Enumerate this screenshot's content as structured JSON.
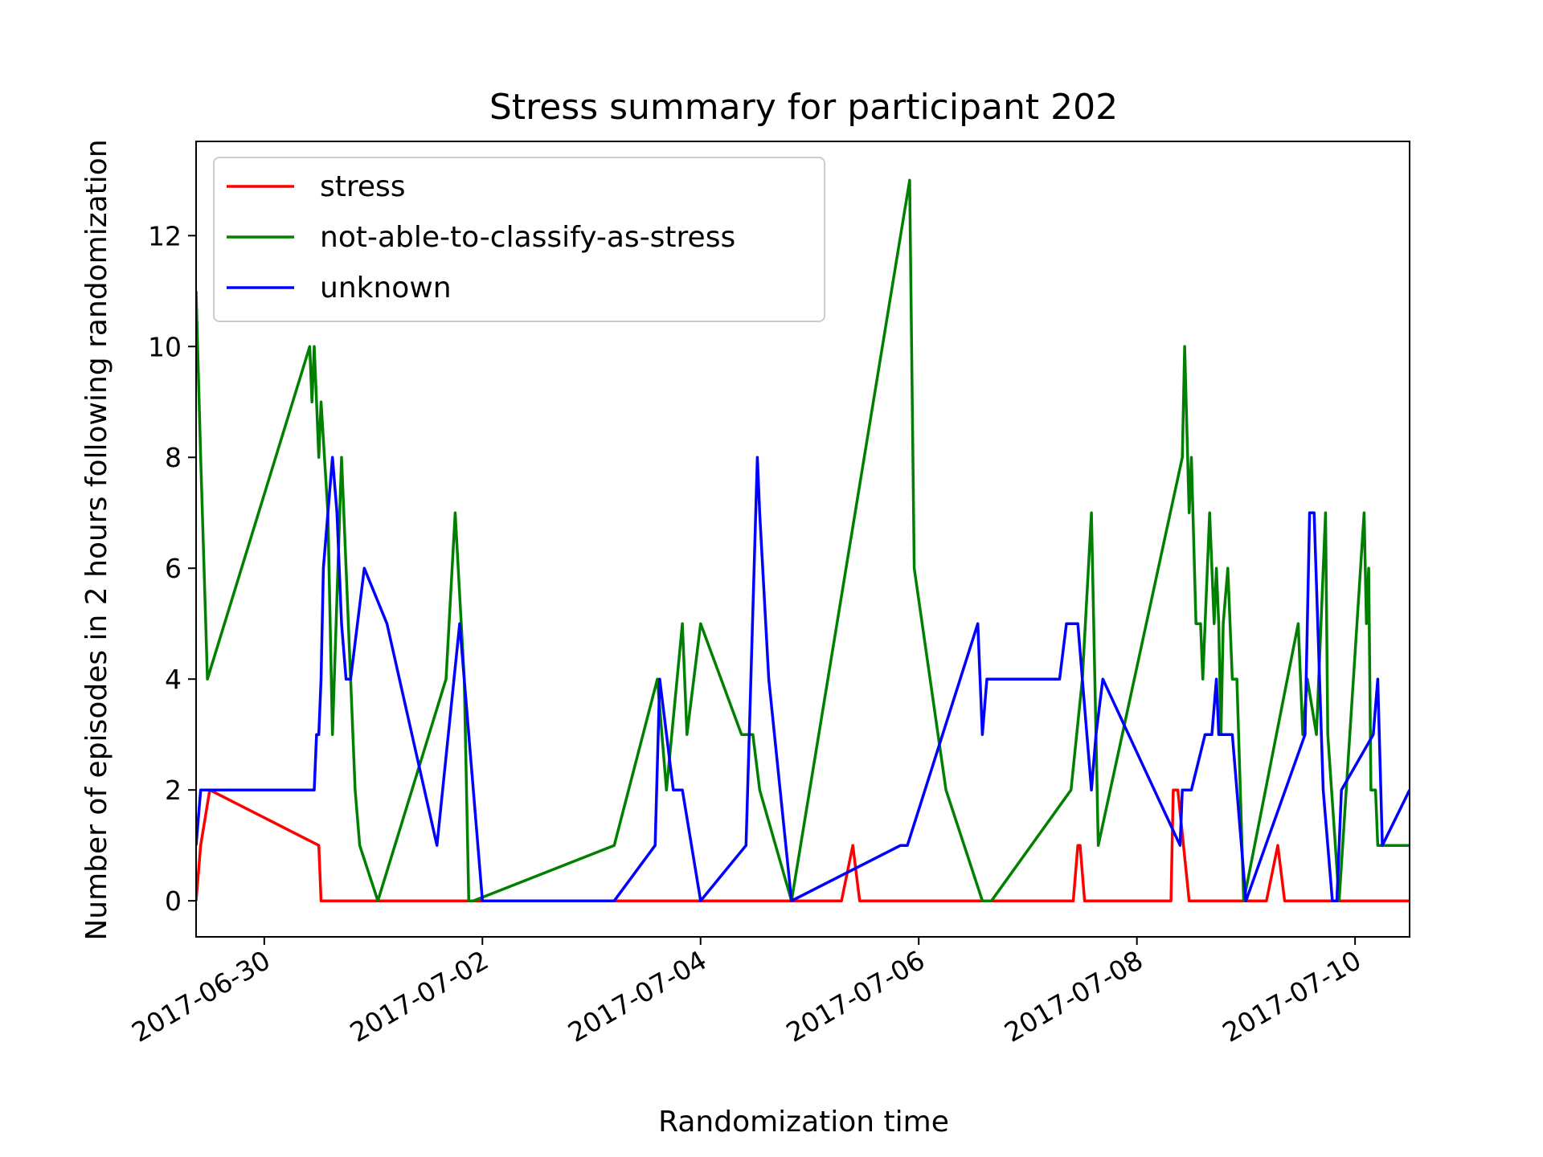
{
  "chart_data": {
    "type": "line",
    "title": "Stress summary for participant 202",
    "xlabel": "Randomization time",
    "ylabel": "Number of episodes in 2 hours following randomization",
    "xlim": [
      "2017-06-29T09:00",
      "2017-07-10T12:00"
    ],
    "ylim": [
      -0.65,
      13.7
    ],
    "x_ticks": [
      "2017-06-30",
      "2017-07-02",
      "2017-07-04",
      "2017-07-06",
      "2017-07-08",
      "2017-07-10"
    ],
    "y_ticks": [
      0,
      2,
      4,
      6,
      8,
      10,
      12
    ],
    "grid": false,
    "legend_position": "upper-left",
    "series": [
      {
        "name": "stress",
        "color": "#ff0000",
        "points": [
          [
            "2017-06-29T09:00",
            0
          ],
          [
            "2017-06-29T10:00",
            1
          ],
          [
            "2017-06-29T12:00",
            2
          ],
          [
            "2017-06-30T12:00",
            1
          ],
          [
            "2017-06-30T12:30",
            0
          ],
          [
            "2017-07-05T07:00",
            0
          ],
          [
            "2017-07-05T09:30",
            1
          ],
          [
            "2017-07-05T11:00",
            0
          ],
          [
            "2017-07-07T10:00",
            0
          ],
          [
            "2017-07-07T11:00",
            1
          ],
          [
            "2017-07-07T11:30",
            1
          ],
          [
            "2017-07-07T12:30",
            0
          ],
          [
            "2017-07-08T07:30",
            0
          ],
          [
            "2017-07-08T08:00",
            2
          ],
          [
            "2017-07-08T09:00",
            2
          ],
          [
            "2017-07-08T11:30",
            0
          ],
          [
            "2017-07-09T04:30",
            0
          ],
          [
            "2017-07-09T07:00",
            1
          ],
          [
            "2017-07-09T08:30",
            0
          ],
          [
            "2017-07-10T12:00",
            0
          ]
        ]
      },
      {
        "name": "not-able-to-classify-as-stress",
        "color": "#008000",
        "points": [
          [
            "2017-06-29T09:00",
            11
          ],
          [
            "2017-06-29T10:00",
            8
          ],
          [
            "2017-06-29T11:30",
            4
          ],
          [
            "2017-06-30T10:00",
            10
          ],
          [
            "2017-06-30T10:30",
            9
          ],
          [
            "2017-06-30T11:00",
            10
          ],
          [
            "2017-06-30T11:30",
            9
          ],
          [
            "2017-06-30T12:00",
            8
          ],
          [
            "2017-06-30T12:30",
            9
          ],
          [
            "2017-06-30T14:00",
            7
          ],
          [
            "2017-06-30T15:00",
            3
          ],
          [
            "2017-06-30T17:00",
            8
          ],
          [
            "2017-06-30T19:00",
            4
          ],
          [
            "2017-06-30T20:00",
            2
          ],
          [
            "2017-06-30T21:00",
            1
          ],
          [
            "2017-07-01T01:00",
            0
          ],
          [
            "2017-07-01T16:00",
            4
          ],
          [
            "2017-07-01T18:00",
            7
          ],
          [
            "2017-07-01T20:00",
            4
          ],
          [
            "2017-07-01T21:00",
            0
          ],
          [
            "2017-07-01T22:00",
            0
          ],
          [
            "2017-07-03T05:00",
            1
          ],
          [
            "2017-07-03T14:30",
            4
          ],
          [
            "2017-07-03T16:30",
            2
          ],
          [
            "2017-07-03T20:00",
            5
          ],
          [
            "2017-07-03T21:00",
            3
          ],
          [
            "2017-07-04T00:00",
            5
          ],
          [
            "2017-07-04T09:00",
            3
          ],
          [
            "2017-07-04T11:30",
            3
          ],
          [
            "2017-07-04T13:00",
            2
          ],
          [
            "2017-07-04T20:00",
            0
          ],
          [
            "2017-07-05T22:00",
            13
          ],
          [
            "2017-07-05T23:00",
            6
          ],
          [
            "2017-07-06T06:00",
            2
          ],
          [
            "2017-07-06T14:00",
            0
          ],
          [
            "2017-07-06T16:00",
            0
          ],
          [
            "2017-07-07T09:30",
            2
          ],
          [
            "2017-07-07T12:00",
            4
          ],
          [
            "2017-07-07T14:00",
            7
          ],
          [
            "2017-07-07T15:30",
            1
          ],
          [
            "2017-07-08T10:00",
            8
          ],
          [
            "2017-07-08T10:30",
            10
          ],
          [
            "2017-07-08T11:30",
            7
          ],
          [
            "2017-07-08T12:00",
            8
          ],
          [
            "2017-07-08T13:00",
            5
          ],
          [
            "2017-07-08T14:00",
            5
          ],
          [
            "2017-07-08T14:30",
            4
          ],
          [
            "2017-07-08T16:00",
            7
          ],
          [
            "2017-07-08T17:00",
            5
          ],
          [
            "2017-07-08T17:30",
            6
          ],
          [
            "2017-07-08T18:00",
            5
          ],
          [
            "2017-07-08T18:30",
            3
          ],
          [
            "2017-07-08T19:00",
            5
          ],
          [
            "2017-07-08T20:00",
            6
          ],
          [
            "2017-07-08T21:00",
            4
          ],
          [
            "2017-07-08T22:00",
            4
          ],
          [
            "2017-07-08T23:30",
            0
          ],
          [
            "2017-07-09T11:30",
            5
          ],
          [
            "2017-07-09T12:30",
            3
          ],
          [
            "2017-07-09T13:30",
            4
          ],
          [
            "2017-07-09T15:30",
            3
          ],
          [
            "2017-07-09T17:30",
            7
          ],
          [
            "2017-07-09T18:00",
            3
          ],
          [
            "2017-07-09T20:30",
            0
          ],
          [
            "2017-07-10T02:00",
            7
          ],
          [
            "2017-07-10T02:30",
            5
          ],
          [
            "2017-07-10T03:00",
            6
          ],
          [
            "2017-07-10T03:30",
            2
          ],
          [
            "2017-07-10T04:30",
            2
          ],
          [
            "2017-07-10T05:00",
            1
          ],
          [
            "2017-07-10T12:00",
            1
          ]
        ]
      },
      {
        "name": "unknown",
        "color": "#0000ff",
        "points": [
          [
            "2017-06-29T09:00",
            1
          ],
          [
            "2017-06-29T10:00",
            2
          ],
          [
            "2017-06-30T11:00",
            2
          ],
          [
            "2017-06-30T11:30",
            3
          ],
          [
            "2017-06-30T12:00",
            3
          ],
          [
            "2017-06-30T12:30",
            4
          ],
          [
            "2017-06-30T13:00",
            6
          ],
          [
            "2017-06-30T15:00",
            8
          ],
          [
            "2017-06-30T16:00",
            7
          ],
          [
            "2017-06-30T17:00",
            5
          ],
          [
            "2017-06-30T18:00",
            4
          ],
          [
            "2017-06-30T19:00",
            4
          ],
          [
            "2017-06-30T22:00",
            6
          ],
          [
            "2017-07-01T03:00",
            5
          ],
          [
            "2017-07-01T14:00",
            1
          ],
          [
            "2017-07-01T19:00",
            5
          ],
          [
            "2017-07-01T21:00",
            3
          ],
          [
            "2017-07-02T00:00",
            0
          ],
          [
            "2017-07-03T05:00",
            0
          ],
          [
            "2017-07-03T14:00",
            1
          ],
          [
            "2017-07-03T15:00",
            4
          ],
          [
            "2017-07-03T18:00",
            2
          ],
          [
            "2017-07-03T20:00",
            2
          ],
          [
            "2017-07-04T00:00",
            0
          ],
          [
            "2017-07-04T10:00",
            1
          ],
          [
            "2017-07-04T12:30",
            8
          ],
          [
            "2017-07-04T13:00",
            7
          ],
          [
            "2017-07-04T15:00",
            4
          ],
          [
            "2017-07-04T20:00",
            0
          ],
          [
            "2017-07-05T20:00",
            1
          ],
          [
            "2017-07-05T21:30",
            1
          ],
          [
            "2017-07-06T13:00",
            5
          ],
          [
            "2017-07-06T14:00",
            3
          ],
          [
            "2017-07-06T15:00",
            4
          ],
          [
            "2017-07-07T06:00",
            4
          ],
          [
            "2017-07-07T07:00",
            4
          ],
          [
            "2017-07-07T08:30",
            5
          ],
          [
            "2017-07-07T09:30",
            5
          ],
          [
            "2017-07-07T10:00",
            5
          ],
          [
            "2017-07-07T11:00",
            5
          ],
          [
            "2017-07-07T12:00",
            4
          ],
          [
            "2017-07-07T14:00",
            2
          ],
          [
            "2017-07-07T15:00",
            3
          ],
          [
            "2017-07-07T16:30",
            4
          ],
          [
            "2017-07-08T09:30",
            1
          ],
          [
            "2017-07-08T10:00",
            2
          ],
          [
            "2017-07-08T12:00",
            2
          ],
          [
            "2017-07-08T15:00",
            3
          ],
          [
            "2017-07-08T16:30",
            3
          ],
          [
            "2017-07-08T17:30",
            4
          ],
          [
            "2017-07-08T18:00",
            3
          ],
          [
            "2017-07-08T20:00",
            3
          ],
          [
            "2017-07-08T21:00",
            3
          ],
          [
            "2017-07-09T00:00",
            0
          ],
          [
            "2017-07-09T13:00",
            3
          ],
          [
            "2017-07-09T14:00",
            7
          ],
          [
            "2017-07-09T15:00",
            7
          ],
          [
            "2017-07-09T17:00",
            2
          ],
          [
            "2017-07-09T19:00",
            0
          ],
          [
            "2017-07-09T20:00",
            0
          ],
          [
            "2017-07-09T21:00",
            2
          ],
          [
            "2017-07-10T04:00",
            3
          ],
          [
            "2017-07-10T05:00",
            4
          ],
          [
            "2017-07-10T06:00",
            1
          ],
          [
            "2017-07-10T12:00",
            2
          ]
        ]
      }
    ]
  }
}
